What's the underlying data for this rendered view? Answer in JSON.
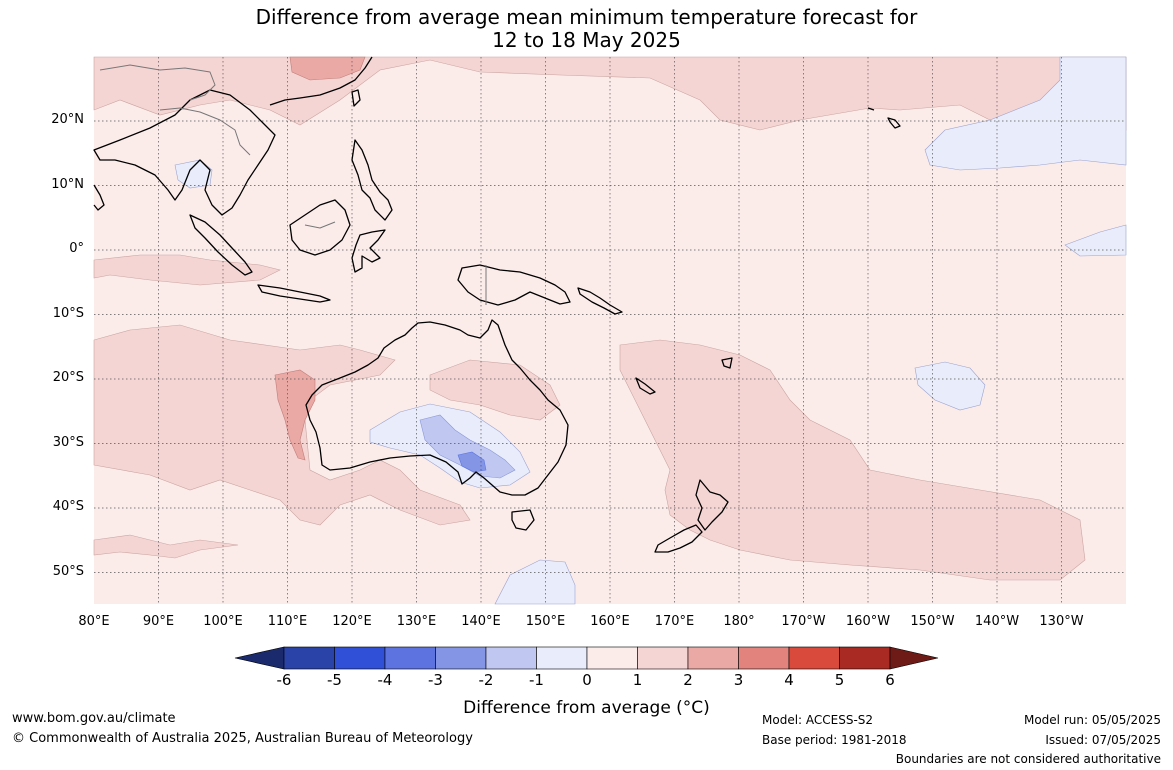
{
  "title_line1": "Difference from average mean minimum temperature forecast for",
  "title_line2": "12 to 18 May 2025",
  "lon_labels": [
    "80°E",
    "90°E",
    "100°E",
    "110°E",
    "120°E",
    "130°E",
    "140°E",
    "150°E",
    "160°E",
    "170°E",
    "180°",
    "170°W",
    "160°W",
    "150°W",
    "140°W",
    "130°W"
  ],
  "lat_labels": [
    "20°N",
    "10°N",
    "0°",
    "10°S",
    "20°S",
    "30°S",
    "40°S",
    "50°S"
  ],
  "colorbar": {
    "ticks": [
      "-6",
      "-5",
      "-4",
      "-3",
      "-2",
      "-1",
      "0",
      "1",
      "2",
      "3",
      "4",
      "5",
      "6"
    ],
    "colors": [
      "#1a2a6c",
      "#2a43a8",
      "#3050d8",
      "#5d74e0",
      "#8495e6",
      "#c0c8f2",
      "#e9ecfb",
      "#fbecea",
      "#f5d5d3",
      "#eba9a5",
      "#e2837d",
      "#d94a3d",
      "#a82a22",
      "#6e1a16"
    ],
    "title": "Difference from average (°C)"
  },
  "footer": {
    "website": "www.bom.gov.au/climate",
    "copyright": "© Commonwealth of Australia 2025, Australian Bureau of Meteorology",
    "model": "Model: ACCESS-S2",
    "base_period": "Base period: 1981-2018",
    "model_run": "Model run: 05/05/2025",
    "issued": "Issued: 07/05/2025",
    "disclaimer": "Boundaries are not considered authoritative"
  }
}
